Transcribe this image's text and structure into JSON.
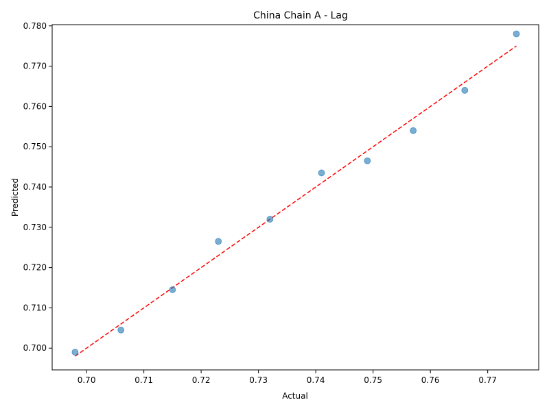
{
  "chart_data": {
    "type": "scatter",
    "title": "China Chain A - Lag",
    "xlabel": "Actual",
    "ylabel": "Predicted",
    "xlim": [
      0.694,
      0.7789
    ],
    "ylim": [
      0.6946,
      0.7803
    ],
    "x_ticks": [
      "0.70",
      "0.71",
      "0.72",
      "0.73",
      "0.74",
      "0.75",
      "0.76",
      "0.77"
    ],
    "y_ticks": [
      "0.700",
      "0.710",
      "0.720",
      "0.730",
      "0.740",
      "0.750",
      "0.760",
      "0.770",
      "0.780"
    ],
    "grid": false,
    "series": [
      {
        "points": [
          {
            "x": 0.698,
            "y": 0.699
          },
          {
            "x": 0.706,
            "y": 0.7045
          },
          {
            "x": 0.715,
            "y": 0.7145
          },
          {
            "x": 0.723,
            "y": 0.7265
          },
          {
            "x": 0.732,
            "y": 0.732
          },
          {
            "x": 0.741,
            "y": 0.7435
          },
          {
            "x": 0.749,
            "y": 0.7465
          },
          {
            "x": 0.757,
            "y": 0.754
          },
          {
            "x": 0.766,
            "y": 0.764
          },
          {
            "x": 0.775,
            "y": 0.778
          }
        ],
        "color": "#1f77b4",
        "alpha": 0.6
      }
    ],
    "reference_line": {
      "from": [
        0.698,
        0.698
      ],
      "to": [
        0.775,
        0.775
      ],
      "color": "#ff0000",
      "style": "dashed"
    }
  }
}
